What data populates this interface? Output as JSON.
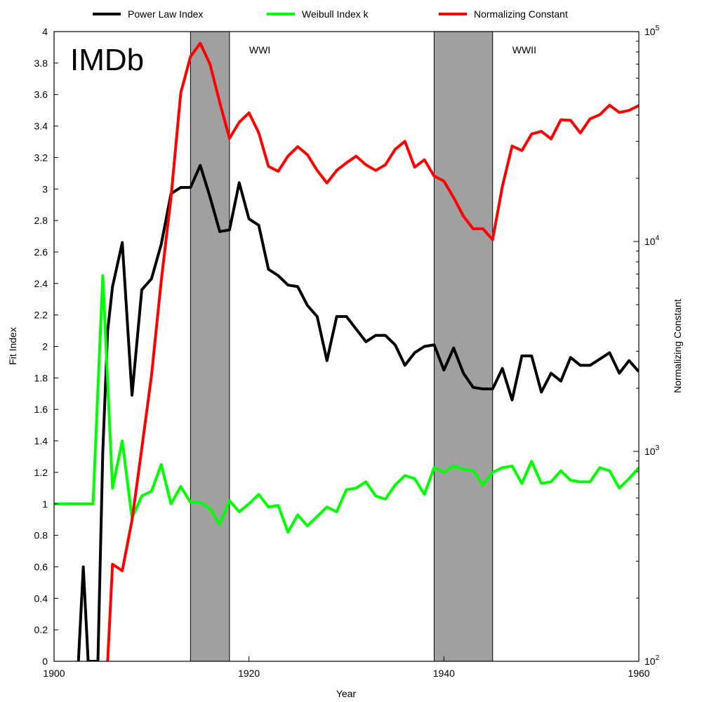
{
  "chart_data": {
    "type": "line",
    "panel_label": "IMDb",
    "xlabel": "Year",
    "ylabel_left": "Fit Index",
    "ylabel_right": "Normalizing Constant",
    "xlim": [
      1900,
      1960
    ],
    "ylim_left": [
      0,
      4
    ],
    "ylim_right_log": [
      100,
      100000
    ],
    "x_ticks": [
      "1900",
      "1920",
      "1940",
      "1960"
    ],
    "x_tick_values": [
      1900,
      1920,
      1940,
      1960
    ],
    "y_left_ticks": [
      "0",
      "0.2",
      "0.4",
      "0.6",
      "0.8",
      "1",
      "1.2",
      "1.4",
      "1.6",
      "1.8",
      "2",
      "2.2",
      "2.4",
      "2.6",
      "2.8",
      "3",
      "3.2",
      "3.4",
      "3.6",
      "3.8",
      "4"
    ],
    "y_left_tick_values": [
      0,
      0.2,
      0.4,
      0.6,
      0.8,
      1,
      1.2,
      1.4,
      1.6,
      1.8,
      2,
      2.2,
      2.4,
      2.6,
      2.8,
      3,
      3.2,
      3.4,
      3.6,
      3.8,
      4
    ],
    "y_right_major_ticks": [
      {
        "value": 100,
        "base": "10",
        "exp": "2"
      },
      {
        "value": 1000,
        "base": "10",
        "exp": "3"
      },
      {
        "value": 10000,
        "base": "10",
        "exp": "4"
      },
      {
        "value": 100000,
        "base": "10",
        "exp": "5"
      }
    ],
    "legend": [
      {
        "label": "Power Law Index",
        "color": "#000000"
      },
      {
        "label": "Weibull Index k",
        "color": "#00ff00"
      },
      {
        "label": "Normalizing Constant",
        "color": "#ff0000"
      }
    ],
    "shaded_periods": [
      {
        "label": "WWI",
        "start": 1914,
        "end": 1918,
        "color": "#a0a0a0"
      },
      {
        "label": "WWII",
        "start": 1939,
        "end": 1945,
        "color": "#a0a0a0"
      }
    ],
    "series": [
      {
        "name": "Power Law Index",
        "axis": "left",
        "color": "#000000",
        "x": [
          1902.5,
          1903,
          1903.5,
          1904,
          1904.5,
          1905,
          1905.5,
          1906,
          1907,
          1908,
          1909,
          1910,
          1911,
          1912,
          1913,
          1914,
          1915,
          1916,
          1917,
          1918,
          1919,
          1920,
          1921,
          1922,
          1923,
          1924,
          1925,
          1926,
          1927,
          1928,
          1929,
          1930,
          1931,
          1932,
          1933,
          1934,
          1935,
          1936,
          1937,
          1938,
          1939,
          1940,
          1941,
          1942,
          1943,
          1944,
          1945,
          1946,
          1947,
          1948,
          1949,
          1950,
          1951,
          1952,
          1953,
          1954,
          1955,
          1956,
          1957,
          1958,
          1959,
          1960
        ],
        "y": [
          0,
          0.6,
          0,
          0,
          0,
          1.33,
          2.1,
          2.38,
          2.66,
          1.69,
          2.36,
          2.43,
          2.65,
          2.97,
          3.01,
          3.01,
          3.15,
          2.95,
          2.73,
          2.74,
          3.04,
          2.81,
          2.77,
          2.49,
          2.45,
          2.39,
          2.38,
          2.26,
          2.19,
          1.91,
          2.19,
          2.19,
          2.11,
          2.03,
          2.07,
          2.07,
          2.01,
          1.88,
          1.96,
          2.0,
          2.01,
          1.85,
          1.99,
          1.83,
          1.74,
          1.73,
          1.73,
          1.86,
          1.66,
          1.94,
          1.94,
          1.71,
          1.83,
          1.78,
          1.93,
          1.88,
          1.88,
          1.92,
          1.96,
          1.83,
          1.91,
          1.84
        ]
      },
      {
        "name": "Weibull Index k",
        "axis": "left",
        "color": "#00ff00",
        "x": [
          1900,
          1904,
          1905,
          1906,
          1907,
          1908,
          1909,
          1910,
          1911,
          1912,
          1913,
          1914,
          1915,
          1916,
          1917,
          1918,
          1919,
          1920,
          1921,
          1922,
          1923,
          1924,
          1925,
          1926,
          1927,
          1928,
          1929,
          1930,
          1931,
          1932,
          1933,
          1934,
          1935,
          1936,
          1937,
          1938,
          1939,
          1940,
          1941,
          1942,
          1943,
          1944,
          1945,
          1946,
          1947,
          1948,
          1949,
          1950,
          1951,
          1952,
          1953,
          1954,
          1955,
          1956,
          1957,
          1958,
          1959,
          1960
        ],
        "y": [
          1.0,
          1.0,
          2.45,
          1.1,
          1.4,
          0.91,
          1.05,
          1.08,
          1.25,
          1.0,
          1.11,
          1.01,
          1.01,
          0.97,
          0.87,
          1.02,
          0.95,
          1.0,
          1.06,
          0.98,
          0.99,
          0.82,
          0.93,
          0.86,
          0.92,
          0.98,
          0.95,
          1.09,
          1.1,
          1.14,
          1.05,
          1.03,
          1.12,
          1.18,
          1.16,
          1.06,
          1.23,
          1.2,
          1.24,
          1.22,
          1.21,
          1.12,
          1.2,
          1.23,
          1.24,
          1.13,
          1.27,
          1.13,
          1.14,
          1.21,
          1.15,
          1.14,
          1.14,
          1.23,
          1.21,
          1.1,
          1.16,
          1.23
        ]
      },
      {
        "name": "Normalizing Constant",
        "axis": "right",
        "color": "#ff0000",
        "x": [
          1905.5,
          1906,
          1907,
          1908,
          1909,
          1910,
          1911,
          1912,
          1913,
          1914,
          1915,
          1916,
          1917,
          1918,
          1919,
          1920,
          1921,
          1922,
          1923,
          1924,
          1925,
          1926,
          1927,
          1928,
          1929,
          1930,
          1931,
          1932,
          1933,
          1934,
          1935,
          1936,
          1937,
          1938,
          1939,
          1940,
          1941,
          1942,
          1943,
          1944,
          1945,
          1946,
          1947,
          1948,
          1949,
          1950,
          1951,
          1952,
          1953,
          1954,
          1955,
          1956,
          1957,
          1958,
          1959,
          1960
        ],
        "y": [
          100,
          290,
          270,
          470,
          1030,
          2300,
          6500,
          16200,
          51000,
          76000,
          88000,
          70000,
          46000,
          31000,
          37000,
          41000,
          33000,
          22800,
          21600,
          25500,
          28300,
          25900,
          21800,
          19000,
          21800,
          23700,
          25500,
          23200,
          21800,
          23200,
          27500,
          30000,
          22600,
          24500,
          20500,
          19400,
          16200,
          13200,
          11500,
          11500,
          10200,
          18300,
          28500,
          27100,
          32500,
          33500,
          30800,
          38000,
          37800,
          32900,
          38400,
          40200,
          44600,
          41200,
          42100,
          44400
        ]
      }
    ]
  }
}
